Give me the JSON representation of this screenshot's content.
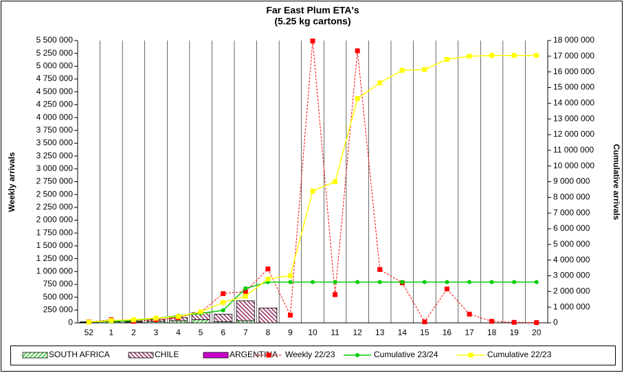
{
  "chart_data": {
    "type": "combo",
    "title": "Far East Plum ETA's",
    "subtitle": "(5.25 kg cartons)",
    "ylabel": "Weekly arrivals",
    "y2label": "Cumulative arrivals",
    "categories": [
      "52",
      "1",
      "2",
      "3",
      "4",
      "5",
      "6",
      "7",
      "8",
      "9",
      "10",
      "11",
      "12",
      "13",
      "14",
      "15",
      "16",
      "17",
      "18",
      "19",
      "20"
    ],
    "ylim": [
      0,
      5500000
    ],
    "yticks": [
      0,
      {
        "value": 250000,
        "label": "250 000"
      },
      {
        "value": 500000,
        "label": "500 000"
      },
      {
        "value": 750000,
        "label": "750 000"
      },
      {
        "value": 1000000,
        "label": "1 000 000"
      },
      {
        "value": 1250000,
        "label": "1 250 000"
      },
      {
        "value": 1500000,
        "label": "1 500 000"
      },
      {
        "value": 1750000,
        "label": "1 750 000"
      },
      {
        "value": 2000000,
        "label": "2 000 000"
      },
      {
        "value": 2250000,
        "label": "2 250 000"
      },
      {
        "value": 2500000,
        "label": "2 500 000"
      },
      {
        "value": 2750000,
        "label": "2 750 000"
      },
      {
        "value": 3000000,
        "label": "3 000 000"
      },
      {
        "value": 3250000,
        "label": "3 250 000"
      },
      {
        "value": 3500000,
        "label": "3 500 000"
      },
      {
        "value": 3750000,
        "label": "3 750 000"
      },
      {
        "value": 4000000,
        "label": "4 000 000"
      },
      {
        "value": 4250000,
        "label": "4 250 000"
      },
      {
        "value": 4500000,
        "label": "4 500 000"
      },
      {
        "value": 4750000,
        "label": "4 750 000"
      },
      {
        "value": 5000000,
        "label": "5 000 000"
      },
      {
        "value": 5250000,
        "label": "5 250 000"
      },
      {
        "value": 5500000,
        "label": "5 500 000"
      }
    ],
    "y2lim": [
      0,
      18000000
    ],
    "y2ticks": [
      0,
      {
        "value": 1000000,
        "label": "1 000 000"
      },
      {
        "value": 2000000,
        "label": "2 000 000"
      },
      {
        "value": 3000000,
        "label": "3 000 000"
      },
      {
        "value": 4000000,
        "label": "4 000 000"
      },
      {
        "value": 5000000,
        "label": "5 000 000"
      },
      {
        "value": 6000000,
        "label": "6 000 000"
      },
      {
        "value": 7000000,
        "label": "7 000 000"
      },
      {
        "value": 8000000,
        "label": "8 000 000"
      },
      {
        "value": 9000000,
        "label": "9 000 000"
      },
      {
        "value": 10000000,
        "label": "10 000 000"
      },
      {
        "value": 11000000,
        "label": "11 000 000"
      },
      {
        "value": 12000000,
        "label": "12 000 000"
      },
      {
        "value": 13000000,
        "label": "13 000 000"
      },
      {
        "value": 14000000,
        "label": "14 000 000"
      },
      {
        "value": 15000000,
        "label": "15 000 000"
      },
      {
        "value": 16000000,
        "label": "16 000 000"
      },
      {
        "value": 17000000,
        "label": "17 000 000"
      },
      {
        "value": 18000000,
        "label": "18 000 000"
      }
    ],
    "vgrid": true,
    "series": [
      {
        "name": "SOUTH AFRICA",
        "type": "bar",
        "color": "#33cc33",
        "hatch": "/",
        "values": [
          10000,
          20000,
          15000,
          30000,
          40000,
          60000,
          20000,
          40000,
          0,
          0,
          0,
          0,
          0,
          0,
          0,
          0,
          0,
          0,
          0,
          0,
          0
        ]
      },
      {
        "name": "CHILE",
        "type": "bar",
        "color": "#993366",
        "hatch": "\\",
        "values": [
          10000,
          20000,
          15000,
          40000,
          60000,
          140000,
          150000,
          390000,
          290000,
          0,
          0,
          0,
          0,
          0,
          0,
          0,
          0,
          0,
          0,
          0,
          0
        ]
      },
      {
        "name": "ARGENTINA",
        "type": "bar",
        "color": "#cc00cc",
        "values": [
          0,
          0,
          0,
          0,
          0,
          0,
          0,
          0,
          0,
          0,
          0,
          0,
          0,
          0,
          0,
          0,
          0,
          0,
          0,
          0,
          0
        ]
      },
      {
        "name": "Weekly 22/23",
        "type": "line",
        "color": "#ff0000",
        "dash": true,
        "marker": "square",
        "values": [
          20000,
          60000,
          30000,
          60000,
          100000,
          210000,
          570000,
          610000,
          1050000,
          150000,
          5490000,
          550000,
          5300000,
          1040000,
          780000,
          20000,
          660000,
          170000,
          30000,
          10000,
          5000
        ]
      },
      {
        "name": "Cumulative 23/24",
        "type": "line",
        "axis": "y2",
        "color": "#00cc00",
        "marker": "circle",
        "values": [
          50000,
          100000,
          150000,
          300000,
          450000,
          600000,
          800000,
          2200000,
          2600000,
          2600000,
          2600000,
          2600000,
          2600000,
          2600000,
          2600000,
          2600000,
          2600000,
          2600000,
          2600000,
          2600000,
          2600000
        ]
      },
      {
        "name": "Cumulative 22/23",
        "type": "line",
        "axis": "y2",
        "color": "#ffff00",
        "marker": "square",
        "values": [
          50000,
          150000,
          200000,
          300000,
          400000,
          700000,
          1300000,
          1700000,
          2800000,
          3000000,
          8400000,
          9000000,
          14300000,
          15300000,
          16100000,
          16150000,
          16800000,
          17000000,
          17050000,
          17050000,
          17050000
        ]
      }
    ]
  }
}
